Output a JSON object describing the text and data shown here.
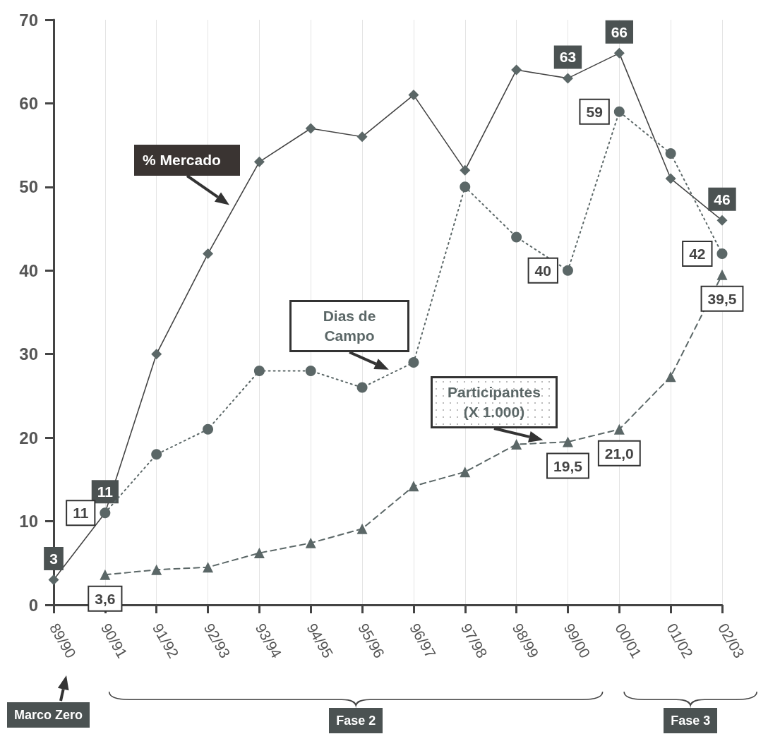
{
  "chart_data": {
    "type": "line",
    "categories": [
      "89/90",
      "90/91",
      "91/92",
      "92/93",
      "93/94",
      "94/95",
      "95/96",
      "96/97",
      "97/98",
      "98/99",
      "99/00",
      "00/01",
      "01/02",
      "02/03"
    ],
    "series": [
      {
        "name": "% Mercado",
        "color": "#5b6767",
        "marker": "diamond",
        "line_style": "solid",
        "values": [
          3,
          11,
          30,
          42,
          53,
          57,
          56,
          61,
          52,
          64,
          63,
          66,
          51,
          46
        ],
        "value_labels": [
          "3",
          "11",
          null,
          null,
          null,
          null,
          null,
          null,
          null,
          null,
          "63",
          "66",
          null,
          "46"
        ]
      },
      {
        "name": "Dias de Campo",
        "color": "#5b6767",
        "marker": "circle",
        "line_style": "dotted",
        "values": [
          null,
          11,
          18,
          21,
          28,
          28,
          26,
          29,
          50,
          44,
          40,
          59,
          54,
          42
        ],
        "value_labels": [
          null,
          "11",
          null,
          null,
          null,
          null,
          null,
          null,
          null,
          null,
          "40",
          "59",
          null,
          "42"
        ]
      },
      {
        "name": "Participantes (X 1.000)",
        "color": "#5b6767",
        "marker": "triangle",
        "line_style": "dashed",
        "values": [
          null,
          3.6,
          4.2,
          4.5,
          6.2,
          7.4,
          9.1,
          14.2,
          15.9,
          19.2,
          19.5,
          21.0,
          27.3,
          39.5
        ],
        "value_labels": [
          null,
          "3,6",
          null,
          null,
          null,
          null,
          null,
          null,
          null,
          null,
          "19,5",
          "21,0",
          null,
          "39,5"
        ]
      }
    ],
    "ylim": [
      0,
      70
    ],
    "yticks": [
      0,
      10,
      20,
      30,
      40,
      50,
      60,
      70
    ],
    "grid": "x",
    "legend": false,
    "annotations": [
      "Marco Zero",
      "Fase 2",
      "Fase 3"
    ]
  }
}
